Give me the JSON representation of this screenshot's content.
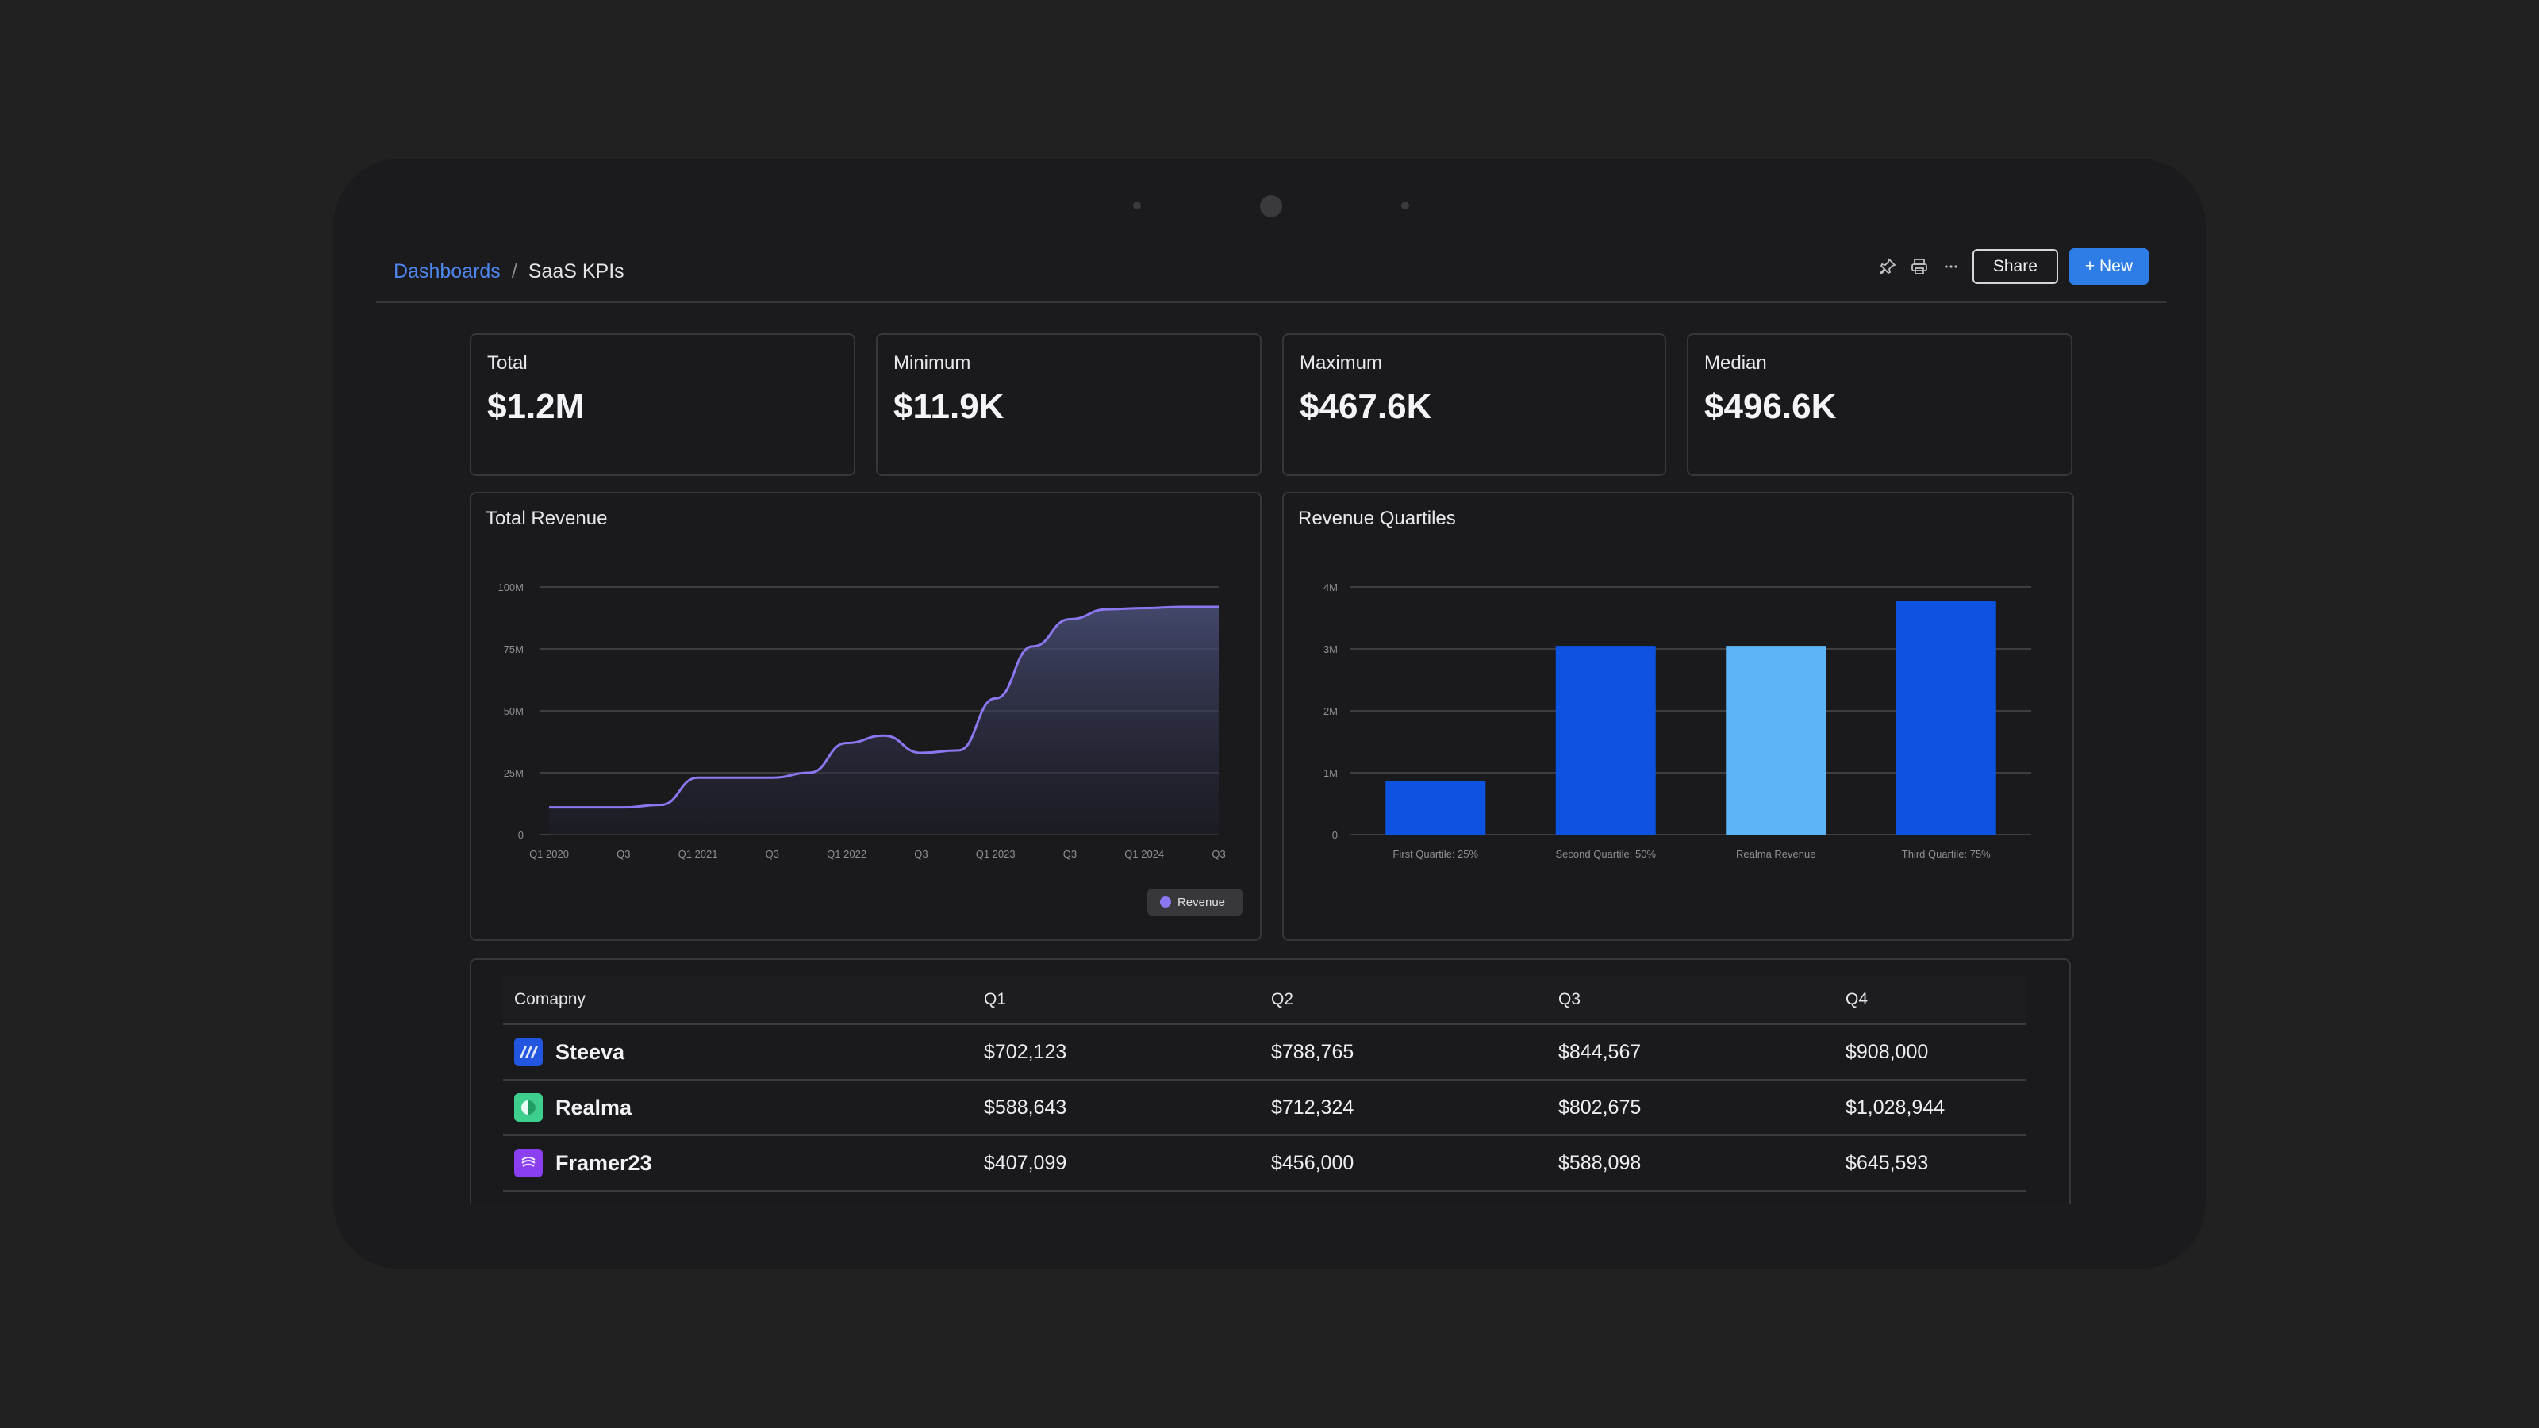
{
  "breadcrumb": {
    "parent": "Dashboards",
    "separator": "/",
    "current": "SaaS KPIs"
  },
  "toolbar": {
    "pin_icon": "pin-icon",
    "print_icon": "printer-icon",
    "more_icon": "more-horizontal-icon",
    "share_label": "Share",
    "new_label": "+ New",
    "accent": "#2e7ce6"
  },
  "kpis": [
    {
      "label": "Total",
      "value": "$1.2M"
    },
    {
      "label": "Minimum",
      "value": "$11.9K"
    },
    {
      "label": "Maximum",
      "value": "$467.6K"
    },
    {
      "label": "Median",
      "value": "$496.6K"
    }
  ],
  "chart_data": [
    {
      "type": "area",
      "title": "Total Revenue",
      "x": [
        "Q1 2020",
        "Q2 2020",
        "Q3 2020",
        "Q4 2020",
        "Q1 2021",
        "Q2 2021",
        "Q3 2021",
        "Q4 2021",
        "Q1 2022",
        "Q2 2022",
        "Q3 2022",
        "Q4 2022",
        "Q1 2023",
        "Q2 2023",
        "Q3 2023",
        "Q4 2023",
        "Q1 2024",
        "Q2 2024",
        "Q3 2024"
      ],
      "x_tick_labels": [
        "Q1 2020",
        "Q3",
        "Q1 2021",
        "Q3",
        "Q1 2022",
        "Q3",
        "Q1 2023",
        "Q3",
        "Q1 2024",
        "Q3"
      ],
      "y_tick_labels": [
        "0",
        "25M",
        "50M",
        "75M",
        "100M"
      ],
      "series": [
        {
          "name": "Revenue",
          "color": "#8b77f0",
          "values": [
            11,
            11,
            11,
            12,
            23,
            23,
            23,
            25,
            37,
            40,
            33,
            34,
            55,
            76,
            87,
            91,
            91.5,
            92,
            92
          ]
        }
      ],
      "ylim": [
        0,
        100
      ],
      "grid": true,
      "legend": "bottom-right"
    },
    {
      "type": "bar",
      "title": "Revenue Quartiles",
      "categories": [
        "First Quartile: 25%",
        "Second Quartile: 50%",
        "Realma Revenue",
        "Third Quartile: 75%"
      ],
      "values": [
        0.87,
        3.05,
        3.05,
        3.78
      ],
      "colors": [
        "#0d52e0",
        "#0d52e0",
        "#5cb5f7",
        "#0d52e0"
      ],
      "y_tick_labels": [
        "0",
        "1M",
        "2M",
        "3M",
        "4M"
      ],
      "ylim": [
        0,
        4
      ],
      "grid": true
    }
  ],
  "table": {
    "headers": [
      "Comapny",
      "Q1",
      "Q2",
      "Q3",
      "Q4"
    ],
    "rows": [
      {
        "company": "Steeva",
        "logo": "steeva-logo-icon",
        "q1": "$702,123",
        "q2": "$788,765",
        "q3": "$844,567",
        "q4": "$908,000"
      },
      {
        "company": "Realma",
        "logo": "realma-logo-icon",
        "q1": "$588,643",
        "q2": "$712,324",
        "q3": "$802,675",
        "q4": "$1,028,944"
      },
      {
        "company": "Framer23",
        "logo": "framer23-logo-icon",
        "q1": "$407,099",
        "q2": "$456,000",
        "q3": "$588,098",
        "q4": "$645,593"
      }
    ]
  }
}
